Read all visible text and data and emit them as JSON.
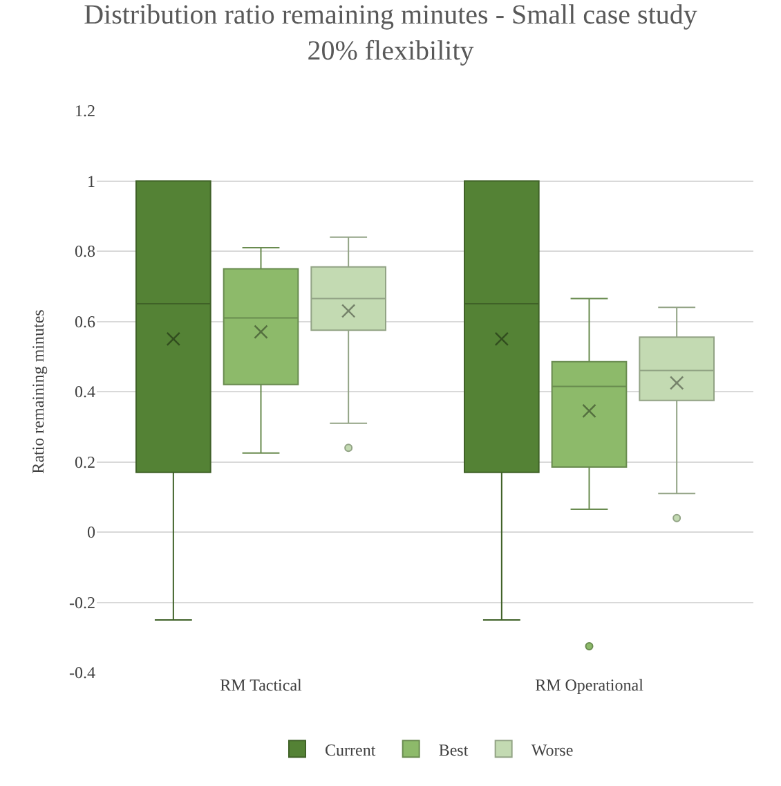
{
  "chart_data": {
    "type": "box",
    "title": "Distribution ratio remaining minutes - Small case study\n20% flexibility",
    "ylabel": "Ratio remaining minutes",
    "categories": [
      "RM Tactical",
      "RM Operational"
    ],
    "series": [
      {
        "name": "Current",
        "color": "#548235",
        "boxes": [
          {
            "low": -0.25,
            "q1": 0.17,
            "median": 0.65,
            "q3": 1.0,
            "high": 1.0,
            "mean": 0.55
          },
          {
            "low": -0.25,
            "q1": 0.17,
            "median": 0.65,
            "q3": 1.0,
            "high": 1.0,
            "mean": 0.55
          }
        ]
      },
      {
        "name": "Best",
        "color": "#8dba6a",
        "boxes": [
          {
            "low": 0.225,
            "q1": 0.42,
            "median": 0.61,
            "q3": 0.75,
            "high": 0.81,
            "mean": 0.57
          },
          {
            "low": 0.065,
            "q1": 0.185,
            "median": 0.415,
            "q3": 0.485,
            "high": 0.665,
            "mean": 0.345,
            "outliers": [
              -0.325
            ]
          }
        ]
      },
      {
        "name": "Worse",
        "color": "#c3dab2",
        "boxes": [
          {
            "low": 0.31,
            "q1": 0.575,
            "median": 0.665,
            "q3": 0.755,
            "high": 0.84,
            "mean": 0.63,
            "outliers": [
              0.24
            ]
          },
          {
            "low": 0.11,
            "q1": 0.375,
            "median": 0.46,
            "q3": 0.555,
            "high": 0.64,
            "mean": 0.425,
            "outliers": [
              0.04
            ]
          }
        ]
      }
    ],
    "ylim": [
      -0.4,
      1.2
    ],
    "yticks": [
      -0.4,
      -0.2,
      0,
      0.2,
      0.4,
      0.6,
      0.8,
      1,
      1.2
    ],
    "grid": "y",
    "legend": "bottom",
    "marker": "circle"
  }
}
